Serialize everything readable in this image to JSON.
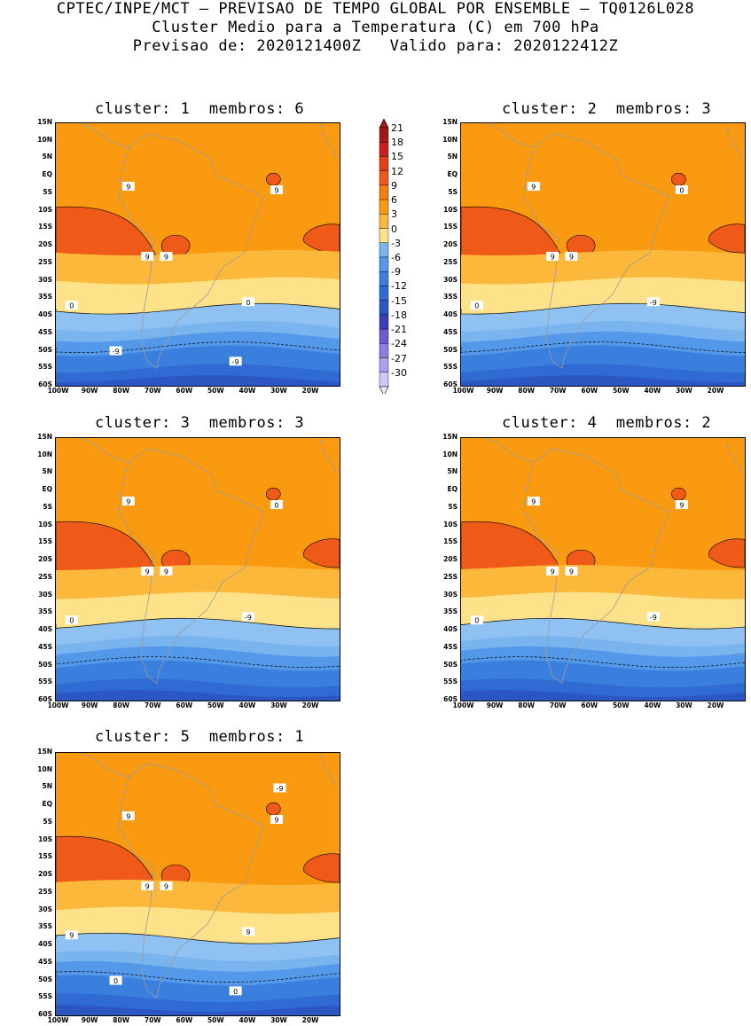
{
  "header": {
    "line1": "CPTEC/INPE/MCT – PREVISAO DE TEMPO GLOBAL POR ENSEMBLE – TQ0126L028",
    "line2": "Cluster Medio para a Temperatura (C) em 700 hPa",
    "line3": "Previsao de: 2020121400Z   Valido para: 2020122412Z"
  },
  "panels": [
    {
      "title": "cluster: 1  membros: 6"
    },
    {
      "title": "cluster: 2  membros: 3"
    },
    {
      "title": "cluster: 3  membros: 3"
    },
    {
      "title": "cluster: 4  membros: 2"
    },
    {
      "title": "cluster: 5  membros: 1"
    }
  ],
  "lat_labels": [
    "15N",
    "10N",
    "5N",
    "EQ",
    "5S",
    "10S",
    "15S",
    "20S",
    "25S",
    "30S",
    "35S",
    "40S",
    "45S",
    "50S",
    "55S",
    "60S"
  ],
  "lon_labels": [
    "100W",
    "90W",
    "80W",
    "70W",
    "60W",
    "50W",
    "40W",
    "30W",
    "20W"
  ],
  "colorbar": {
    "labels": [
      "21",
      "18",
      "15",
      "12",
      "9",
      "6",
      "3",
      "0",
      "-3",
      "-6",
      "-9",
      "-12",
      "-15",
      "-18",
      "-21",
      "-24",
      "-27",
      "-30"
    ],
    "colors": [
      "#a11a1a",
      "#c82020",
      "#e0401a",
      "#ef5a18",
      "#f57f12",
      "#fa9a10",
      "#fbb83a",
      "#fde28a",
      "#79b4ef",
      "#5498e9",
      "#3a7fde",
      "#2f6bd3",
      "#2c56c2",
      "#3c3fb6",
      "#6a5bd0",
      "#8a7ee0",
      "#ab9ff0",
      "#cfc6fb"
    ]
  },
  "contour_labels": {
    "c1": [
      "9",
      "9",
      "9",
      "9",
      "0",
      "0",
      "-9",
      "-9"
    ],
    "c2": [
      "9",
      "9",
      "9",
      "0",
      "0",
      "-9"
    ],
    "c3": [
      "9",
      "9",
      "9",
      "0",
      "0",
      "-9"
    ],
    "c4": [
      "9",
      "9",
      "9",
      "9",
      "0",
      "-9"
    ],
    "c5": [
      "9",
      "9",
      "9",
      "9",
      "9",
      "9",
      "0",
      "0",
      "-9"
    ]
  }
}
